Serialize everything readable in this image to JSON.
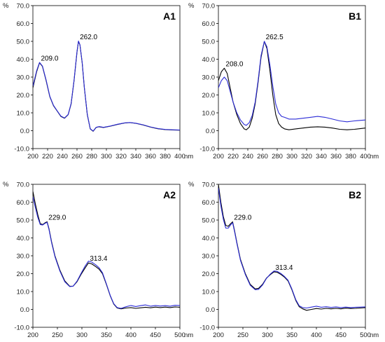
{
  "chart_data": [
    {
      "type": "line",
      "panel_label": "A1",
      "y_unit": "%",
      "x_unit": "nm",
      "xlim": [
        200,
        400
      ],
      "ylim": [
        -10,
        70
      ],
      "xticks": [
        "200",
        "220",
        "240",
        "260",
        "280",
        "300",
        "320",
        "340",
        "360",
        "380",
        "400"
      ],
      "yticks": [
        "-10.0",
        "0.0",
        "10.0",
        "20.0",
        "30.0",
        "40.0",
        "50.0",
        "60.0",
        "70.0"
      ],
      "annotations": [
        {
          "text": "209.0",
          "x": 209,
          "y": 38
        },
        {
          "text": "262.0",
          "x": 262,
          "y": 50
        }
      ],
      "colors": {
        "series_0": "#000000",
        "series_1": "#2b2bd6"
      },
      "series": [
        {
          "x": [
            200,
            205,
            209,
            213,
            218,
            223,
            228,
            233,
            238,
            243,
            248,
            252,
            256,
            260,
            262,
            264,
            267,
            270,
            274,
            278,
            282,
            286,
            290,
            296,
            305,
            315,
            325,
            332,
            340,
            350,
            360,
            370,
            380,
            390,
            400
          ],
          "y": [
            24,
            33,
            38,
            36,
            28,
            19,
            14,
            11,
            8,
            7,
            9,
            15,
            28,
            44,
            50,
            48,
            38,
            24,
            9,
            1,
            -0.3,
            1.8,
            2.2,
            1.8,
            2.5,
            3.5,
            4.3,
            4.5,
            4.1,
            3.2,
            2,
            1.1,
            0.6,
            0.4,
            0.3
          ]
        },
        {
          "x": [
            200,
            205,
            209,
            213,
            218,
            223,
            228,
            233,
            238,
            243,
            248,
            252,
            256,
            260,
            262,
            264,
            267,
            270,
            274,
            278,
            282,
            286,
            290,
            296,
            305,
            315,
            325,
            332,
            340,
            350,
            360,
            370,
            380,
            390,
            400
          ],
          "y": [
            25,
            33.5,
            38.2,
            36.2,
            28.3,
            19.2,
            14.2,
            11.1,
            8.2,
            7.1,
            9.1,
            15.2,
            28.3,
            44.3,
            50.2,
            48.1,
            38.2,
            24.2,
            9.2,
            1.1,
            -0.2,
            1.9,
            2.3,
            1.9,
            2.6,
            3.6,
            4.4,
            4.6,
            4.2,
            3.3,
            2.1,
            1.2,
            0.7,
            0.5,
            0.4
          ]
        }
      ]
    },
    {
      "type": "line",
      "panel_label": "B1",
      "y_unit": "%",
      "x_unit": "nm",
      "xlim": [
        200,
        400
      ],
      "ylim": [
        -10,
        70
      ],
      "xticks": [
        "200",
        "220",
        "240",
        "260",
        "280",
        "300",
        "320",
        "340",
        "360",
        "380",
        "400"
      ],
      "yticks": [
        "-10.0",
        "0.0",
        "10.0",
        "20.0",
        "30.0",
        "40.0",
        "50.0",
        "60.0",
        "70.0"
      ],
      "annotations": [
        {
          "text": "208.0",
          "x": 208,
          "y": 35
        },
        {
          "text": "262.5",
          "x": 262.5,
          "y": 50
        }
      ],
      "colors": {
        "series_0": "#000000",
        "series_1": "#2b2bd6"
      },
      "series": [
        {
          "x": [
            200,
            204,
            208,
            212,
            216,
            220,
            225,
            230,
            235,
            238,
            242,
            246,
            250,
            254,
            258,
            262.5,
            266,
            270,
            274,
            278,
            282,
            286,
            290,
            296,
            305,
            315,
            325,
            335,
            345,
            355,
            365,
            375,
            385,
            400
          ],
          "y": [
            28,
            33,
            35,
            32,
            24,
            16,
            9,
            4,
            1,
            0.5,
            2,
            7,
            15,
            27,
            41,
            50,
            46,
            34,
            20,
            9,
            4,
            2,
            1,
            0.5,
            1,
            1.5,
            2,
            2.2,
            2,
            1.5,
            0.8,
            0.5,
            0.8,
            1.5
          ]
        },
        {
          "x": [
            200,
            204,
            208,
            212,
            216,
            220,
            225,
            230,
            235,
            238,
            242,
            246,
            250,
            254,
            258,
            262.5,
            266,
            270,
            274,
            278,
            282,
            286,
            290,
            296,
            305,
            315,
            325,
            335,
            345,
            355,
            365,
            375,
            385,
            400
          ],
          "y": [
            24,
            28,
            30,
            28,
            22,
            16,
            10,
            6,
            3.5,
            3,
            4.5,
            8.5,
            16,
            28,
            42,
            50,
            47,
            37,
            25,
            15,
            10,
            8,
            7.5,
            6.5,
            6.5,
            7,
            7.5,
            8,
            7.5,
            6.5,
            5.5,
            5,
            5.5,
            6
          ]
        }
      ]
    },
    {
      "type": "line",
      "panel_label": "A2",
      "y_unit": "%",
      "x_unit": "nm",
      "xlim": [
        200,
        500
      ],
      "ylim": [
        -10,
        70
      ],
      "xticks": [
        "200",
        "250",
        "300",
        "350",
        "400",
        "450",
        "500"
      ],
      "yticks": [
        "-10.0",
        "0.0",
        "10.0",
        "20.0",
        "30.0",
        "40.0",
        "50.0",
        "60.0",
        "70.0"
      ],
      "annotations": [
        {
          "text": "229.0",
          "x": 229,
          "y": 49
        },
        {
          "text": "313.4",
          "x": 313.4,
          "y": 26
        }
      ],
      "colors": {
        "series_0": "#000000",
        "series_1": "#2b2bd6"
      },
      "series": [
        {
          "x": [
            200,
            205,
            210,
            215,
            220,
            225,
            229,
            233,
            238,
            245,
            255,
            265,
            275,
            282,
            290,
            298,
            306,
            313.4,
            320,
            328,
            335,
            342,
            350,
            358,
            365,
            372,
            380,
            390,
            400,
            410,
            420,
            430,
            440,
            450,
            460,
            470,
            480,
            490,
            500
          ],
          "y": [
            66,
            59,
            53,
            48,
            47.5,
            48.5,
            49,
            45,
            38,
            30,
            22,
            16,
            13,
            13,
            15.5,
            19.5,
            23,
            26,
            25.5,
            24,
            22.5,
            20,
            14,
            7.5,
            3,
            0.8,
            0.3,
            0.8,
            1,
            0.6,
            0.9,
            1.2,
            0.9,
            1.3,
            1,
            1.3,
            1,
            1.4,
            1.2
          ]
        },
        {
          "x": [
            200,
            205,
            210,
            215,
            220,
            225,
            229,
            233,
            238,
            245,
            255,
            265,
            275,
            282,
            290,
            298,
            306,
            313.4,
            320,
            328,
            335,
            342,
            350,
            358,
            365,
            372,
            380,
            390,
            400,
            410,
            420,
            430,
            440,
            450,
            460,
            470,
            480,
            490,
            500
          ],
          "y": [
            63,
            57,
            51.5,
            47.5,
            47.2,
            48.2,
            48.7,
            44.5,
            37.5,
            29.5,
            21.5,
            15.5,
            12.8,
            13,
            15.8,
            20,
            24,
            27,
            26.5,
            25,
            23.3,
            20.5,
            14.3,
            7.7,
            3.2,
            1,
            0.6,
            1.5,
            2.2,
            1.6,
            2.1,
            2.5,
            1.8,
            2.2,
            1.9,
            2.1,
            1.8,
            2.3,
            2.2
          ]
        }
      ]
    },
    {
      "type": "line",
      "panel_label": "B2",
      "y_unit": "%",
      "x_unit": "nm",
      "xlim": [
        200,
        500
      ],
      "ylim": [
        -10,
        70
      ],
      "xticks": [
        "200",
        "250",
        "300",
        "350",
        "400",
        "450",
        "500"
      ],
      "yticks": [
        "-10.0",
        "0.0",
        "10.0",
        "20.0",
        "30.0",
        "40.0",
        "50.0",
        "60.0",
        "70.0"
      ],
      "annotations": [
        {
          "text": "229.0",
          "x": 229,
          "y": 49
        },
        {
          "text": "313.4",
          "x": 313.4,
          "y": 21
        }
      ],
      "colors": {
        "series_0": "#000000",
        "series_1": "#2b2bd6"
      },
      "series": [
        {
          "x": [
            200,
            205,
            210,
            215,
            220,
            225,
            229,
            233,
            238,
            245,
            255,
            265,
            275,
            282,
            290,
            298,
            306,
            313.4,
            320,
            328,
            335,
            342,
            350,
            358,
            365,
            372,
            380,
            390,
            400,
            410,
            420,
            430,
            440,
            450,
            460,
            470,
            480,
            490,
            500
          ],
          "y": [
            70,
            60,
            52,
            47,
            46.5,
            48,
            49,
            44,
            37,
            28,
            20,
            14,
            11.5,
            11.8,
            14,
            17.5,
            19.5,
            21,
            20.8,
            19.5,
            18,
            16,
            11,
            5,
            1.5,
            0.3,
            -0.5,
            0,
            0.5,
            0.2,
            0.6,
            0.3,
            0.6,
            0.3,
            0.7,
            0.5,
            0.6,
            0.8,
            1
          ]
        },
        {
          "x": [
            200,
            205,
            210,
            215,
            220,
            225,
            229,
            233,
            238,
            245,
            255,
            265,
            275,
            282,
            290,
            298,
            306,
            313.4,
            320,
            328,
            335,
            342,
            350,
            358,
            365,
            372,
            380,
            390,
            400,
            410,
            420,
            430,
            440,
            450,
            460,
            470,
            480,
            490,
            500
          ],
          "y": [
            68,
            58,
            50.5,
            45.5,
            45.5,
            47.3,
            48.5,
            43.5,
            36.5,
            27.5,
            19.5,
            13.5,
            11,
            11.2,
            13.6,
            17.3,
            19.8,
            21.5,
            21.3,
            20,
            18.4,
            16.4,
            11.4,
            5.4,
            2,
            1,
            0.8,
            1.3,
            1.8,
            1.2,
            1.5,
            1.1,
            1.4,
            1,
            1.3,
            1,
            1.2,
            1.3,
            1.4
          ]
        }
      ]
    }
  ]
}
